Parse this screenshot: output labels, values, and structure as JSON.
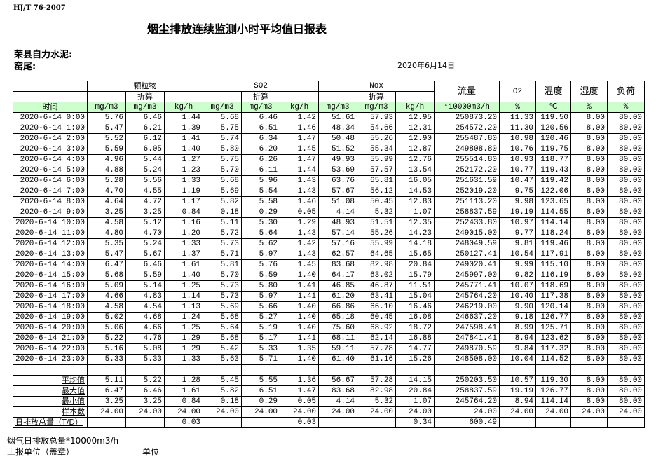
{
  "standard": "HJ/T  76-2007",
  "title": "烟尘排放连续监测小时平均值日报表",
  "company": "荣县自力水泥:",
  "kiln": "窑尾:",
  "date": "2020年6月14日",
  "header": {
    "particulate": "颗粒物",
    "so2": "SO2",
    "nox": "Nox",
    "converted": "折算",
    "flow": "流量",
    "o2": "O2",
    "temp": "温度",
    "humidity": "湿度",
    "load": "负荷",
    "time": "时间",
    "units": [
      "mg/m3",
      "mg/m3",
      "kg/h",
      "mg/m3",
      "mg/m3",
      "kg/h",
      "mg/m3",
      "mg/m3",
      "kg/h",
      "*10000m3/h",
      "%",
      "℃",
      "%",
      "%"
    ]
  },
  "rows": [
    [
      "2020-6-14 0:00",
      "5.76",
      "6.46",
      "1.44",
      "5.68",
      "6.46",
      "1.42",
      "51.61",
      "57.93",
      "12.95",
      "250873.20",
      "11.33",
      "119.50",
      "8.00",
      "80.00"
    ],
    [
      "2020-6-14 1:00",
      "5.47",
      "6.21",
      "1.39",
      "5.75",
      "6.51",
      "1.46",
      "48.34",
      "54.66",
      "12.31",
      "254572.20",
      "11.30",
      "120.56",
      "8.00",
      "80.00"
    ],
    [
      "2020-6-14 2:00",
      "5.52",
      "6.12",
      "1.41",
      "5.74",
      "6.34",
      "1.47",
      "50.48",
      "55.26",
      "12.90",
      "255487.80",
      "10.98",
      "120.46",
      "8.00",
      "80.00"
    ],
    [
      "2020-6-14 3:00",
      "5.59",
      "6.05",
      "1.40",
      "5.80",
      "6.20",
      "1.45",
      "51.52",
      "55.34",
      "12.87",
      "249808.80",
      "10.76",
      "119.75",
      "8.00",
      "80.00"
    ],
    [
      "2020-6-14 4:00",
      "4.96",
      "5.44",
      "1.27",
      "5.75",
      "6.26",
      "1.47",
      "49.93",
      "55.99",
      "12.76",
      "255514.80",
      "10.93",
      "118.77",
      "8.00",
      "80.00"
    ],
    [
      "2020-6-14 5:00",
      "4.88",
      "5.24",
      "1.23",
      "5.70",
      "6.11",
      "1.44",
      "53.69",
      "57.57",
      "13.54",
      "252172.20",
      "10.77",
      "119.43",
      "8.00",
      "80.00"
    ],
    [
      "2020-6-14 6:00",
      "5.28",
      "5.56",
      "1.33",
      "5.68",
      "5.96",
      "1.43",
      "63.76",
      "65.81",
      "16.05",
      "251631.59",
      "10.47",
      "119.42",
      "8.00",
      "80.00"
    ],
    [
      "2020-6-14 7:00",
      "4.70",
      "4.55",
      "1.19",
      "5.69",
      "5.54",
      "1.43",
      "57.67",
      "56.12",
      "14.53",
      "252019.20",
      "9.75",
      "122.06",
      "8.00",
      "80.00"
    ],
    [
      "2020-6-14 8:00",
      "4.64",
      "4.72",
      "1.17",
      "5.82",
      "5.58",
      "1.46",
      "51.08",
      "50.45",
      "12.83",
      "251113.20",
      "9.98",
      "123.65",
      "8.00",
      "80.00"
    ],
    [
      "2020-6-14 9:00",
      "3.25",
      "3.25",
      "0.84",
      "0.18",
      "0.29",
      "0.05",
      "4.14",
      "5.32",
      "1.07",
      "258837.59",
      "19.19",
      "114.55",
      "8.00",
      "80.00"
    ],
    [
      "2020-6-14 10:00",
      "4.58",
      "5.12",
      "1.16",
      "5.11",
      "5.30",
      "1.29",
      "48.93",
      "51.51",
      "12.35",
      "252433.80",
      "10.97",
      "114.14",
      "8.00",
      "80.00"
    ],
    [
      "2020-6-14 11:00",
      "4.80",
      "4.70",
      "1.20",
      "5.72",
      "5.64",
      "1.43",
      "57.14",
      "55.26",
      "14.23",
      "249015.00",
      "9.77",
      "118.24",
      "8.00",
      "80.00"
    ],
    [
      "2020-6-14 12:00",
      "5.35",
      "5.24",
      "1.33",
      "5.73",
      "5.62",
      "1.42",
      "57.16",
      "55.99",
      "14.18",
      "248049.59",
      "9.81",
      "119.46",
      "8.00",
      "80.00"
    ],
    [
      "2020-6-14 13:00",
      "5.47",
      "5.67",
      "1.37",
      "5.71",
      "5.97",
      "1.43",
      "62.57",
      "64.65",
      "15.65",
      "250127.41",
      "10.54",
      "117.91",
      "8.00",
      "80.00"
    ],
    [
      "2020-6-14 14:00",
      "6.47",
      "6.46",
      "1.61",
      "5.81",
      "5.76",
      "1.45",
      "83.68",
      "82.98",
      "20.84",
      "249020.41",
      "9.99",
      "115.10",
      "8.00",
      "80.00"
    ],
    [
      "2020-6-14 15:00",
      "5.68",
      "5.59",
      "1.40",
      "5.70",
      "5.59",
      "1.40",
      "64.17",
      "63.02",
      "15.79",
      "245997.00",
      "9.82",
      "116.19",
      "8.00",
      "80.00"
    ],
    [
      "2020-6-14 16:00",
      "5.09",
      "5.14",
      "1.25",
      "5.73",
      "5.80",
      "1.41",
      "46.85",
      "46.87",
      "11.51",
      "245771.41",
      "10.07",
      "118.69",
      "8.00",
      "80.00"
    ],
    [
      "2020-6-14 17:00",
      "4.66",
      "4.83",
      "1.14",
      "5.73",
      "5.97",
      "1.41",
      "61.20",
      "63.41",
      "15.04",
      "245764.20",
      "10.40",
      "117.38",
      "8.00",
      "80.00"
    ],
    [
      "2020-6-14 18:00",
      "4.58",
      "4.54",
      "1.13",
      "5.69",
      "5.66",
      "1.40",
      "66.86",
      "66.10",
      "16.46",
      "246219.00",
      "9.90",
      "120.14",
      "8.00",
      "80.00"
    ],
    [
      "2020-6-14 19:00",
      "5.02",
      "4.68",
      "1.24",
      "5.68",
      "5.27",
      "1.40",
      "65.18",
      "60.45",
      "16.08",
      "246637.20",
      "9.18",
      "126.77",
      "8.00",
      "80.00"
    ],
    [
      "2020-6-14 20:00",
      "5.06",
      "4.66",
      "1.25",
      "5.64",
      "5.19",
      "1.40",
      "75.60",
      "68.92",
      "18.72",
      "247598.41",
      "8.99",
      "125.71",
      "8.00",
      "80.00"
    ],
    [
      "2020-6-14 21:00",
      "5.22",
      "4.76",
      "1.29",
      "5.68",
      "5.17",
      "1.41",
      "68.11",
      "62.14",
      "16.88",
      "247841.41",
      "8.94",
      "123.62",
      "8.00",
      "80.00"
    ],
    [
      "2020-6-14 22:00",
      "5.16",
      "5.08",
      "1.29",
      "5.42",
      "5.33",
      "1.35",
      "59.11",
      "57.78",
      "14.77",
      "249870.59",
      "9.84",
      "117.32",
      "8.00",
      "80.00"
    ],
    [
      "2020-6-14 23:00",
      "5.33",
      "5.33",
      "1.33",
      "5.63",
      "5.71",
      "1.40",
      "61.40",
      "61.16",
      "15.26",
      "248508.00",
      "10.04",
      "114.52",
      "8.00",
      "80.00"
    ]
  ],
  "summary": [
    [
      "平均值",
      "5.11",
      "5.22",
      "1.28",
      "5.45",
      "5.55",
      "1.36",
      "56.67",
      "57.28",
      "14.15",
      "250203.50",
      "10.57",
      "119.30",
      "8.00",
      "80.00"
    ],
    [
      "最大值",
      "6.47",
      "6.46",
      "1.61",
      "5.82",
      "6.51",
      "1.47",
      "83.68",
      "82.98",
      "20.84",
      "258837.59",
      "19.19",
      "126.77",
      "8.00",
      "80.00"
    ],
    [
      "最小值",
      "3.25",
      "3.25",
      "0.84",
      "0.18",
      "0.29",
      "0.05",
      "4.14",
      "5.32",
      "1.07",
      "245764.20",
      "8.94",
      "114.14",
      "8.00",
      "80.00"
    ],
    [
      "样本数",
      "24.00",
      "24.00",
      "24.00",
      "24.00",
      "24.00",
      "24.00",
      "24.00",
      "24.00",
      "24.00",
      "24.00",
      "24.00",
      "24.00",
      "24.00",
      "24.00"
    ],
    [
      "日排放总量（T/D）",
      "",
      "",
      "0.03",
      "",
      "",
      "0.03",
      "",
      "",
      "0.34",
      "600.49",
      "",
      "",
      "",
      ""
    ]
  ],
  "footer": {
    "flue_gas_total": "烟气日排放总量*10000m3/h",
    "reporting_unit": "上报单位（盖章）",
    "unit": "单位"
  }
}
